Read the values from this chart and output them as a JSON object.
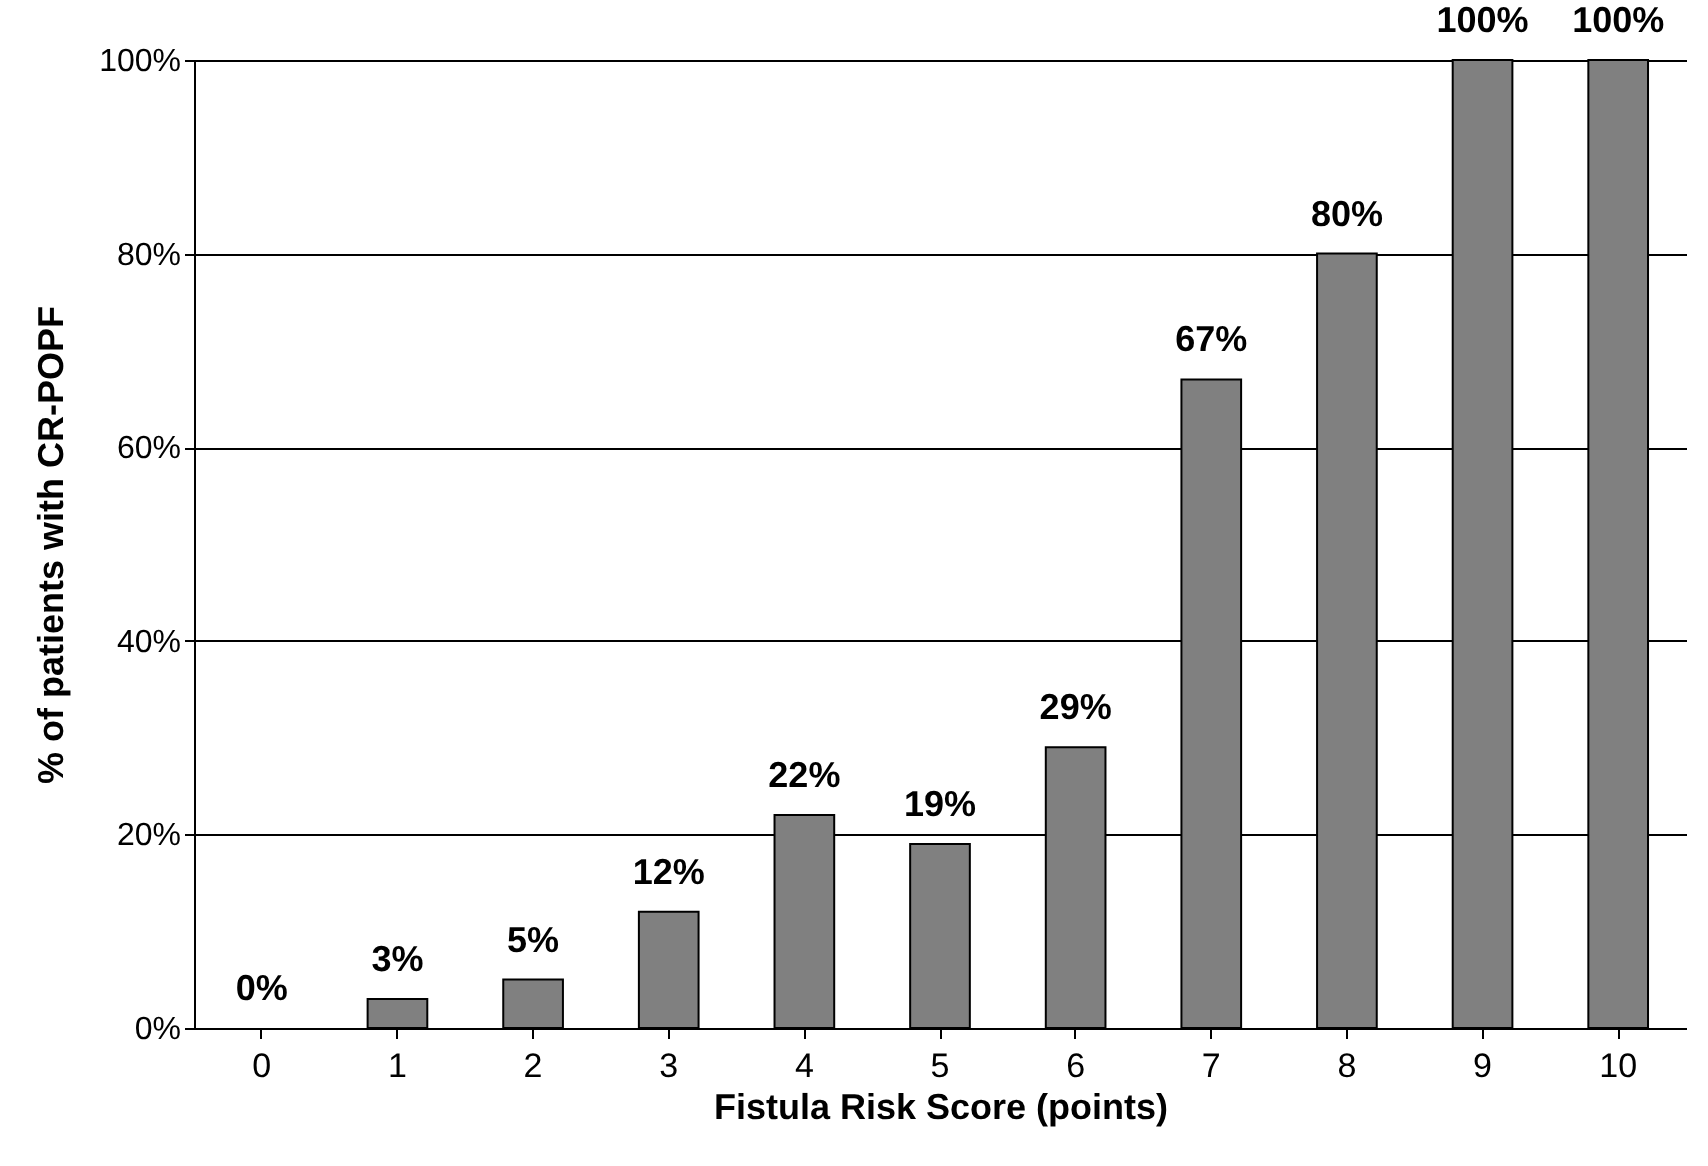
{
  "chart_data": {
    "type": "bar",
    "xlabel": "Fistula Risk Score  (points)",
    "ylabel": "% of patients with CR-POPF",
    "categories": [
      "0",
      "1",
      "2",
      "3",
      "4",
      "5",
      "6",
      "7",
      "8",
      "9",
      "10"
    ],
    "values": [
      0,
      3,
      5,
      12,
      22,
      19,
      29,
      67,
      80,
      100,
      100
    ],
    "value_labels": [
      "0%",
      "3%",
      "5%",
      "12%",
      "22%",
      "19%",
      "29%",
      "67%",
      "80%",
      "100%",
      "100%"
    ],
    "color": "#808080",
    "ylim": [
      0,
      100
    ],
    "yticks": [
      {
        "value": 0,
        "label": "0%"
      },
      {
        "value": 20,
        "label": "20%"
      },
      {
        "value": 40,
        "label": "40%"
      },
      {
        "value": 60,
        "label": "60%"
      },
      {
        "value": 80,
        "label": "80%"
      },
      {
        "value": 100,
        "label": "100%"
      }
    ],
    "grid": "y"
  }
}
